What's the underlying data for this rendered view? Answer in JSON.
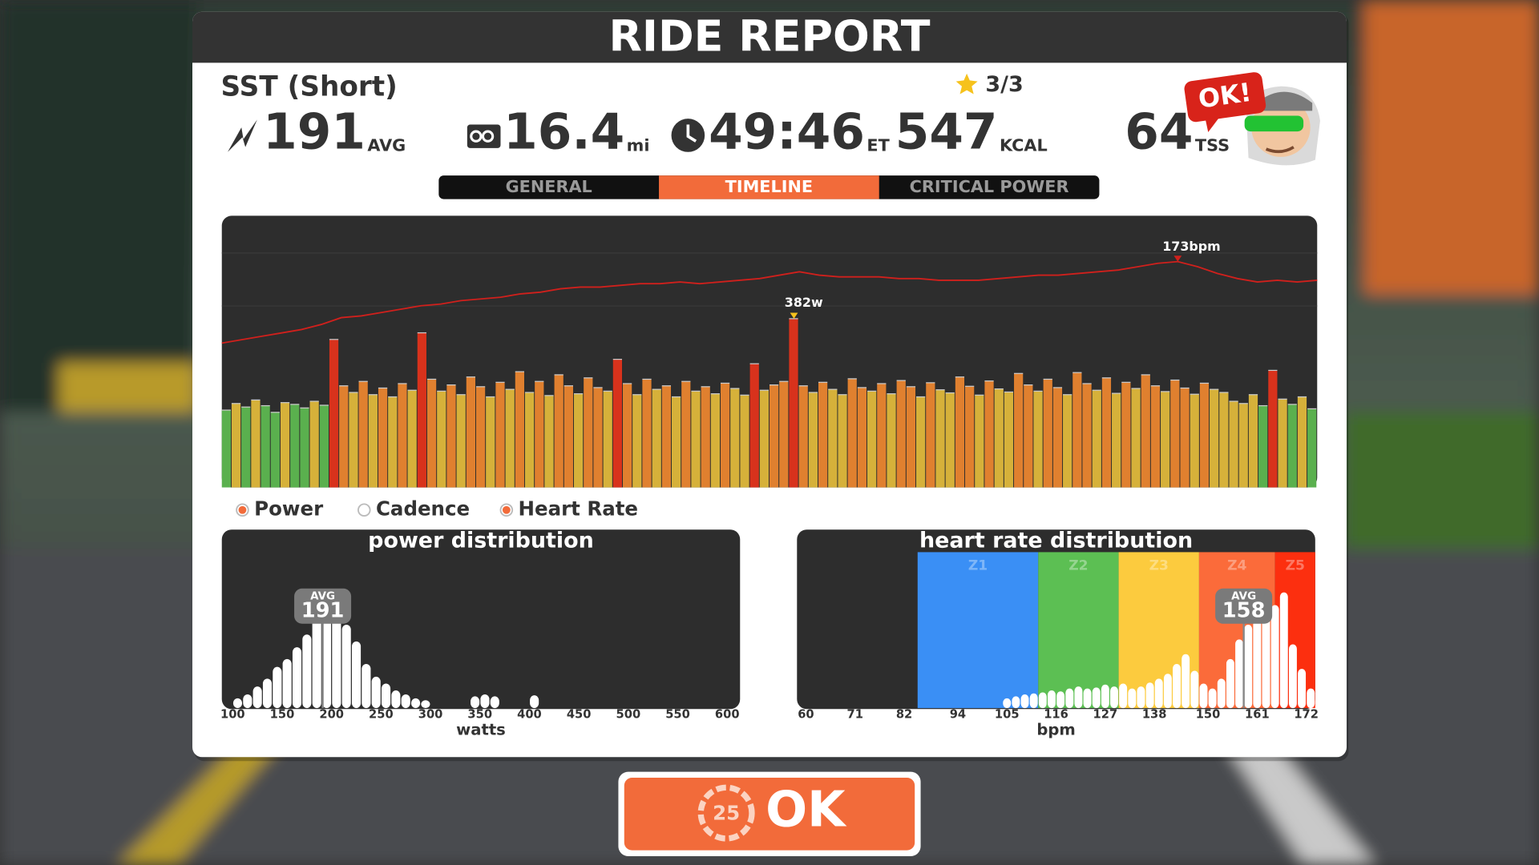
{
  "header": {
    "title": "RIDE REPORT"
  },
  "workout": {
    "name": "SST (Short)",
    "stars": "3/3",
    "badge": "OK!"
  },
  "stats": [
    {
      "value": 191,
      "unit": "AVG"
    },
    {
      "value": 16.4,
      "unit": "mi"
    },
    {
      "value": "49:46",
      "unit": "ET"
    },
    {
      "value": 547,
      "unit": "KCAL"
    },
    {
      "value": 64,
      "unit": "TSS"
    }
  ],
  "tabs": [
    {
      "label": "GENERAL",
      "active": false
    },
    {
      "label": "TIMELINE",
      "active": true
    },
    {
      "label": "CRITICAL POWER",
      "active": false
    }
  ],
  "timeline": {
    "type": "bar-line",
    "ylim": [
      0,
      615
    ],
    "y2lim": [
      40,
      200
    ],
    "zone_edges": [
      150,
      190,
      225,
      265
    ],
    "zone_colors": [
      "#3d7fd9",
      "#5ab04e",
      "#d6b13a",
      "#e0802f",
      "#d8321c"
    ],
    "series": [
      {
        "color": "#cccccc",
        "peak_label": {
          "value": 382,
          "label": "382w"
        },
        "values": [
          175,
          190,
          182,
          198,
          185,
          170,
          192,
          188,
          180,
          195,
          186,
          335,
          230,
          215,
          240,
          210,
          225,
          205,
          235,
          220,
          350,
          245,
          218,
          232,
          210,
          250,
          228,
          205,
          238,
          222,
          262,
          215,
          240,
          208,
          255,
          230,
          212,
          248,
          226,
          218,
          290,
          235,
          210,
          245,
          222,
          230,
          205,
          240,
          218,
          228,
          212,
          236,
          224,
          209,
          280,
          220,
          232,
          240,
          382,
          230,
          215,
          238,
          222,
          210,
          246,
          226,
          218,
          235,
          212,
          242,
          228,
          205,
          237,
          221,
          214,
          250,
          229,
          209,
          241,
          223,
          216,
          258,
          232,
          218,
          245,
          226,
          210,
          260,
          235,
          220,
          248,
          213,
          238,
          224,
          255,
          230,
          217,
          243,
          225,
          211,
          236,
          222,
          215,
          195,
          190,
          210,
          185,
          265,
          200,
          188,
          205,
          178
        ]
      },
      {
        "color": "#d0201c",
        "axis": "y2",
        "peak_label": {
          "value": 173,
          "label": "173bpm"
        },
        "values": [
          125,
          127,
          129,
          131,
          133,
          136,
          140,
          141,
          143,
          145,
          147,
          148,
          150,
          151,
          152,
          154,
          155,
          157,
          158,
          158,
          159,
          160,
          160,
          161,
          160,
          161,
          162,
          163,
          165,
          167,
          165,
          164,
          164,
          164,
          163,
          163,
          162,
          162,
          162,
          163,
          164,
          165,
          165,
          166,
          167,
          168,
          170,
          172,
          173,
          170,
          166,
          163,
          161,
          162,
          161,
          162
        ]
      }
    ]
  },
  "legend": [
    {
      "label": "Power",
      "selected": true
    },
    {
      "label": "Cadence",
      "selected": false
    },
    {
      "label": "Heart Rate",
      "selected": true
    }
  ],
  "power_distribution": {
    "type": "histogram",
    "title": "power distribution",
    "x_label": "watts",
    "xlim": [
      89,
      613
    ],
    "ylim": [
      0,
      160
    ],
    "xticks": [
      100,
      150,
      200,
      250,
      300,
      350,
      400,
      450,
      500,
      550,
      600
    ],
    "bins": [
      100,
      110,
      120,
      130,
      140,
      150,
      160,
      170,
      180,
      190,
      200,
      210,
      220,
      230,
      240,
      250,
      260,
      270,
      280,
      290,
      300,
      310,
      320,
      330,
      340,
      350,
      360,
      370,
      380,
      390,
      400,
      410
    ],
    "values": [
      10,
      14,
      22,
      30,
      42,
      50,
      62,
      75,
      95,
      100,
      98,
      85,
      68,
      45,
      32,
      25,
      18,
      14,
      10,
      8,
      0,
      0,
      0,
      0,
      12,
      14,
      12,
      0,
      0,
      0,
      13
    ],
    "avg_label": "AVG",
    "avg": 191
  },
  "heart_rate_distribution": {
    "type": "histogram",
    "title": "heart rate distribution",
    "x_label": "bpm",
    "xlim": [
      58,
      174
    ],
    "ylim": [
      0,
      160
    ],
    "xticks": [
      60,
      71,
      82,
      94,
      105,
      116,
      127,
      138,
      150,
      161,
      172
    ],
    "zone_edges": [
      85,
      112,
      130,
      148,
      165,
      174
    ],
    "zones": [
      {
        "name": "Z1",
        "color": "#3a8ff5"
      },
      {
        "name": "Z2",
        "color": "#5cbf53"
      },
      {
        "name": "Z3",
        "color": "#fccb3e"
      },
      {
        "name": "Z4",
        "color": "#fb6b3a"
      },
      {
        "name": "Z5",
        "color": "#fc2f0f"
      }
    ],
    "bins": [
      104,
      106,
      108,
      110,
      112,
      114,
      116,
      118,
      120,
      122,
      124,
      126,
      128,
      130,
      132,
      134,
      136,
      138,
      140,
      142,
      144,
      146,
      148,
      150,
      152,
      154,
      156,
      158,
      160,
      162,
      164,
      166,
      168,
      170,
      172,
      174
    ],
    "values": [
      10,
      12,
      14,
      15,
      16,
      18,
      17,
      20,
      22,
      20,
      21,
      24,
      22,
      25,
      20,
      22,
      26,
      30,
      35,
      45,
      55,
      38,
      25,
      20,
      30,
      50,
      70,
      85,
      90,
      95,
      105,
      118,
      65,
      40,
      20
    ],
    "avg_label": "AVG",
    "avg": 158
  },
  "button": {
    "countdown": 25,
    "label": "OK"
  }
}
